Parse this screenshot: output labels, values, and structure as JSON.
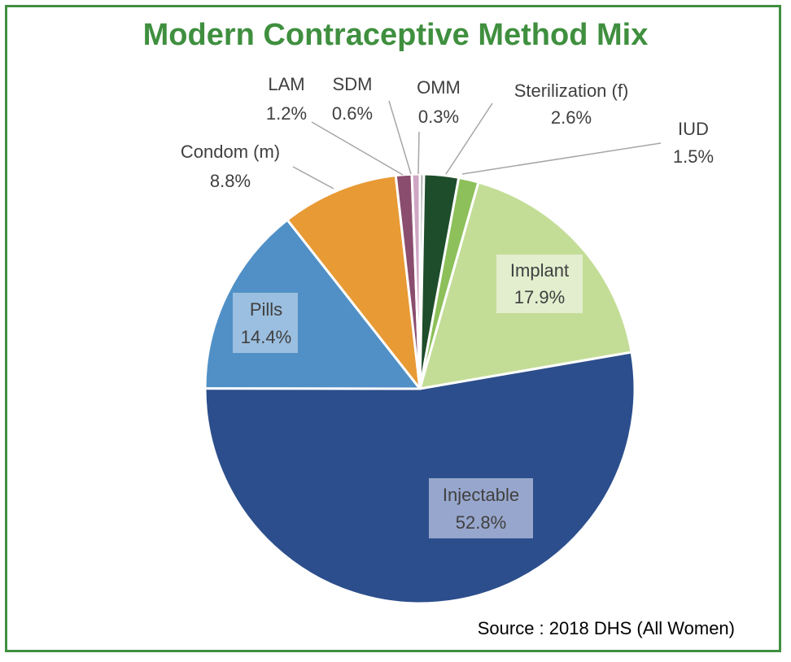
{
  "title": "Modern Contraceptive Method Mix",
  "source": "Source : 2018 DHS (All Women)",
  "colors": {
    "title": "#3f8f3f",
    "frame": "#3f8f3f",
    "label_text": "#404040"
  },
  "chart_data": {
    "type": "pie",
    "title": "Modern Contraceptive Method Mix",
    "start_angle_deg": 0,
    "direction": "clockwise",
    "slices": [
      {
        "name": "OMM",
        "value": 0.3,
        "label": "0.3%",
        "color": "#a8a8a8"
      },
      {
        "name": "Sterilization (f)",
        "value": 2.6,
        "label": "2.6%",
        "color": "#1e4d2b"
      },
      {
        "name": "IUD",
        "value": 1.5,
        "label": "1.5%",
        "color": "#8dc05a"
      },
      {
        "name": "Implant",
        "value": 17.9,
        "label": "17.9%",
        "color": "#c3dd97"
      },
      {
        "name": "Injectable",
        "value": 52.8,
        "label": "52.8%",
        "color": "#2c4e8c"
      },
      {
        "name": "Pills",
        "value": 14.4,
        "label": "14.4%",
        "color": "#5190c6"
      },
      {
        "name": "Condom (m)",
        "value": 8.8,
        "label": "8.8%",
        "color": "#e89a35"
      },
      {
        "name": "LAM",
        "value": 1.2,
        "label": "1.2%",
        "color": "#8a4d6e"
      },
      {
        "name": "SDM",
        "value": 0.6,
        "label": "0.6%",
        "color": "#cfa6c4"
      }
    ]
  }
}
